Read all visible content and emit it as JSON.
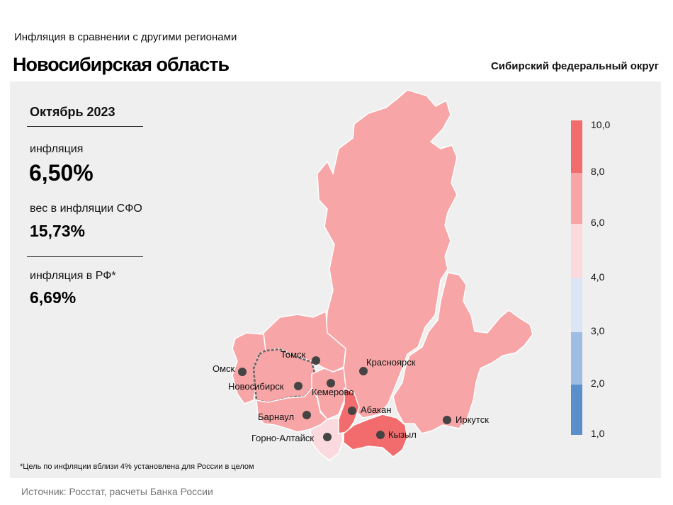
{
  "header": {
    "subtitle": "Инфляция  в сравнении  с другими  регионами",
    "title": "Новосибирская область",
    "district": "Сибирский федеральный округ"
  },
  "stats": {
    "period": "Октябрь 2023",
    "inflation_label": "инфляция",
    "inflation_value": "6,50%",
    "weight_label": "вес в инфляции  СФО",
    "weight_value": "15,73%",
    "rf_label": "инфляция  в РФ*",
    "rf_value": "6,69%"
  },
  "legend": {
    "labels": [
      "10,0",
      "8,0",
      "6,0",
      "4,0",
      "3,0",
      "2,0",
      "1,0"
    ],
    "colors": [
      "#f26b6d",
      "#f7a5a6",
      "#fadadd",
      "#dbe5f5",
      "#9fbde3",
      "#5b8fcb"
    ]
  },
  "cities": {
    "omsk": "Омск",
    "tomsk": "Томск",
    "novosibirsk": "Новосибирск",
    "kemerovo": "Кемерово",
    "krasnoyarsk": "Красноярск",
    "barnaul": "Барнаул",
    "abakan": "Абакан",
    "gorno_altaysk": "Горно-Алтайск",
    "kyzyl": "Кызыл",
    "irkutsk": "Иркутск"
  },
  "colors": {
    "inflation_6_8": "#f7a5a6",
    "inflation_8_10": "#f26b6d",
    "inflation_4_6": "#fadadd"
  },
  "footnote": "*Цель по инфляции вблизи 4% установлена для России в целом",
  "source": "Источник: Росстат, расчеты Банка России"
}
